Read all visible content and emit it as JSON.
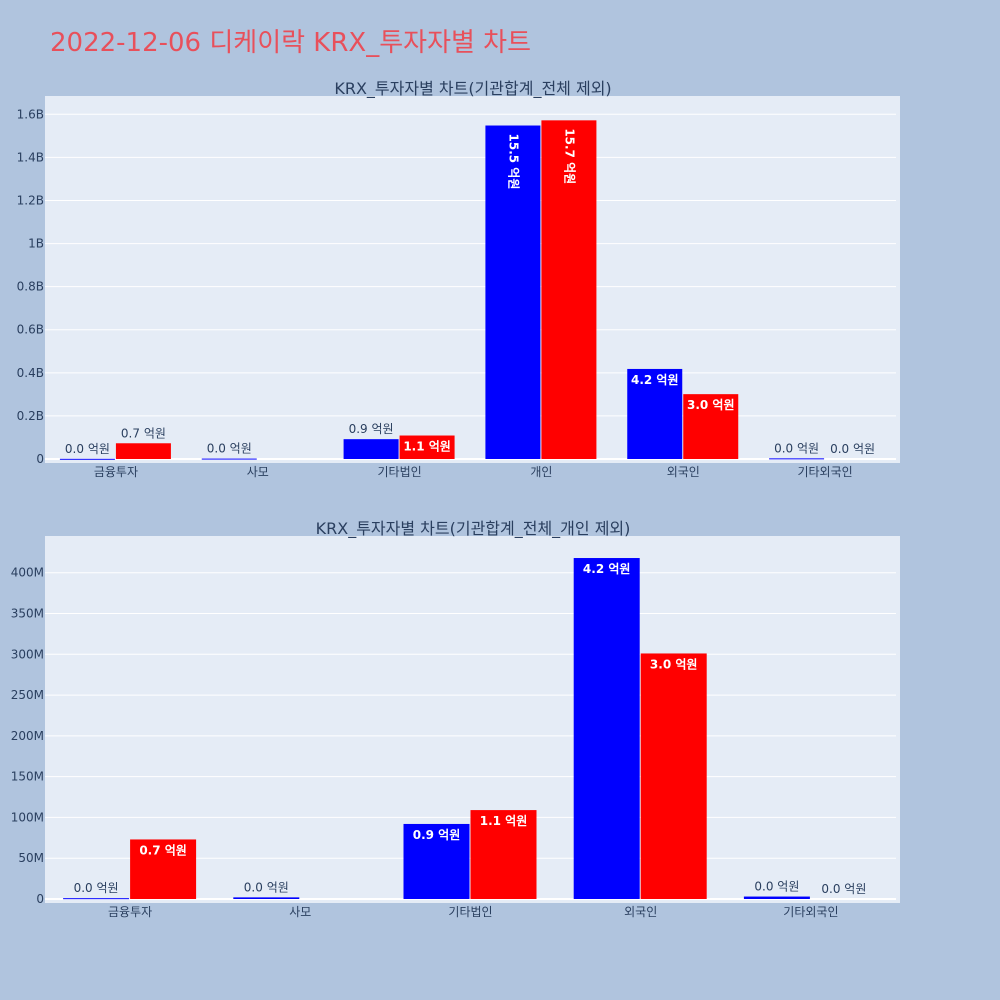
{
  "page_title": "2022-12-06 디케이락 KRX_투자자별 차트",
  "colors": {
    "background": "#b0c4de",
    "plot_bg": "#e5ecf6",
    "series_blue": "#0000ff",
    "series_red": "#ff0000",
    "title": "#e8505b"
  },
  "chart_data": [
    {
      "type": "bar",
      "title": "KRX_투자자별 차트(기관합계_전체 제외)",
      "categories": [
        "금융투자",
        "사모",
        "기타법인",
        "개인",
        "외국인",
        "기타외국인"
      ],
      "series": [
        {
          "color": "#0000ff",
          "values": [
            1000000,
            2000000,
            92000000,
            1548000000,
            418000000,
            3000000
          ],
          "labels": [
            "0.0 억원",
            "0.0 억원",
            "0.9 억원",
            "15.5 억원",
            "4.2 억원",
            "0.0 억원"
          ]
        },
        {
          "color": "#ff0000",
          "values": [
            73000000,
            0,
            109000000,
            1572000000,
            301000000,
            0
          ],
          "labels": [
            "0.7 억원",
            "",
            "1.1 억원",
            "15.7 억원",
            "3.0 억원",
            "0.0 억원"
          ]
        }
      ],
      "yticks": [
        0,
        200000000,
        400000000,
        600000000,
        800000000,
        1000000000,
        1200000000,
        1400000000,
        1600000000
      ],
      "ytick_labels": [
        "0",
        "0.2B",
        "0.4B",
        "0.6B",
        "0.8B",
        "1B",
        "1.2B",
        "1.4B",
        "1.6B"
      ],
      "ylim": [
        0,
        1685000000
      ],
      "grid": true
    },
    {
      "type": "bar",
      "title": "KRX_투자자별 차트(기관합계_전체_개인 제외)",
      "categories": [
        "금융투자",
        "사모",
        "기타법인",
        "외국인",
        "기타외국인"
      ],
      "series": [
        {
          "color": "#0000ff",
          "values": [
            1000000,
            2000000,
            92000000,
            418000000,
            3000000
          ],
          "labels": [
            "0.0 억원",
            "0.0 억원",
            "0.9 억원",
            "4.2 억원",
            "0.0 억원"
          ]
        },
        {
          "color": "#ff0000",
          "values": [
            73000000,
            0,
            109000000,
            301000000,
            0
          ],
          "labels": [
            "0.7 억원",
            "",
            "1.1 억원",
            "3.0 억원",
            "0.0 억원"
          ]
        }
      ],
      "yticks": [
        0,
        50000000,
        100000000,
        150000000,
        200000000,
        250000000,
        300000000,
        350000000,
        400000000
      ],
      "ytick_labels": [
        "0",
        "50M",
        "100M",
        "150M",
        "200M",
        "250M",
        "300M",
        "350M",
        "400M"
      ],
      "ylim": [
        0,
        445000000
      ],
      "grid": true
    }
  ]
}
